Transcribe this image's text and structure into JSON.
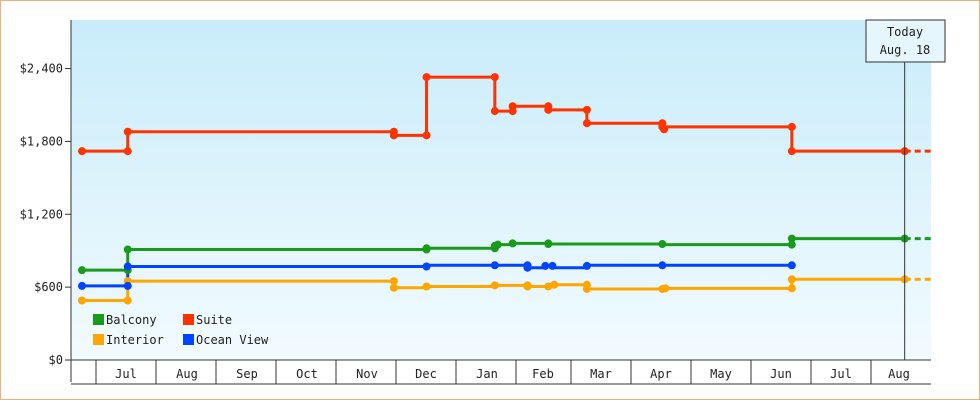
{
  "chart_data": {
    "type": "line",
    "ylim": [
      0,
      2800
    ],
    "y_ticks": [
      {
        "value": 0,
        "label": "$0"
      },
      {
        "value": 600,
        "label": "$600"
      },
      {
        "value": 1200,
        "label": "$1,200"
      },
      {
        "value": 1800,
        "label": "$1,800"
      },
      {
        "value": 2400,
        "label": "$2,400"
      }
    ],
    "x_domain": [
      0,
      14.3
    ],
    "x_ticks": [
      {
        "value": 1.0,
        "label": "Jul"
      },
      {
        "value": 2.0,
        "label": "Aug"
      },
      {
        "value": 3.0,
        "label": "Sep"
      },
      {
        "value": 4.0,
        "label": "Oct"
      },
      {
        "value": 5.0,
        "label": "Nov"
      },
      {
        "value": 6.0,
        "label": "Dec"
      },
      {
        "value": 7.0,
        "label": "Jan"
      },
      {
        "value": 8.0,
        "label": "Feb"
      },
      {
        "value": 9.0,
        "label": "Mar"
      },
      {
        "value": 10.0,
        "label": "Apr"
      },
      {
        "value": 11.0,
        "label": "May"
      },
      {
        "value": 12.0,
        "label": "Jun"
      },
      {
        "value": 13.0,
        "label": "Jul"
      },
      {
        "value": 14.0,
        "label": "Aug"
      }
    ],
    "today": {
      "line1": "Today",
      "line2": "Aug. 18",
      "x": 13.85
    },
    "series": [
      {
        "name": "Balcony",
        "color": "#1a9a1a",
        "points": [
          [
            0.0,
            740
          ],
          [
            0.77,
            740
          ],
          [
            0.77,
            910
          ],
          [
            5.8,
            910
          ],
          [
            5.8,
            920
          ],
          [
            6.95,
            920
          ],
          [
            6.95,
            940
          ],
          [
            7.0,
            950
          ],
          [
            7.25,
            950
          ],
          [
            7.25,
            960
          ],
          [
            7.85,
            960
          ],
          [
            7.85,
            955
          ],
          [
            9.77,
            955
          ],
          [
            9.77,
            950
          ],
          [
            11.95,
            950
          ],
          [
            11.95,
            1000
          ],
          [
            13.85,
            1000
          ]
        ],
        "projection": [
          [
            13.85,
            1000
          ],
          [
            14.3,
            1000
          ]
        ]
      },
      {
        "name": "Suite",
        "color": "#ff3300",
        "points": [
          [
            0.0,
            1720
          ],
          [
            0.77,
            1720
          ],
          [
            0.77,
            1880
          ],
          [
            5.25,
            1880
          ],
          [
            5.25,
            1850
          ],
          [
            5.8,
            1850
          ],
          [
            5.8,
            2330
          ],
          [
            6.95,
            2330
          ],
          [
            6.95,
            2050
          ],
          [
            7.25,
            2050
          ],
          [
            7.25,
            2090
          ],
          [
            7.85,
            2090
          ],
          [
            7.85,
            2060
          ],
          [
            8.5,
            2060
          ],
          [
            8.5,
            1950
          ],
          [
            9.77,
            1950
          ],
          [
            9.77,
            1920
          ],
          [
            11.95,
            1920
          ],
          [
            11.95,
            1720
          ],
          [
            13.85,
            1720
          ]
        ],
        "projection": [
          [
            13.85,
            1720
          ],
          [
            14.3,
            1720
          ]
        ]
      },
      {
        "name": "Interior",
        "color": "#ffa500",
        "points": [
          [
            0.0,
            490
          ],
          [
            0.77,
            490
          ],
          [
            0.77,
            650
          ],
          [
            5.25,
            650
          ],
          [
            5.25,
            595
          ],
          [
            5.8,
            595
          ],
          [
            5.8,
            605
          ],
          [
            6.95,
            605
          ],
          [
            6.95,
            615
          ],
          [
            7.5,
            615
          ],
          [
            7.5,
            605
          ],
          [
            7.85,
            605
          ],
          [
            7.85,
            620
          ],
          [
            8.5,
            620
          ],
          [
            8.5,
            585
          ],
          [
            9.77,
            585
          ],
          [
            9.77,
            590
          ],
          [
            11.95,
            590
          ],
          [
            11.95,
            665
          ],
          [
            13.85,
            665
          ]
        ],
        "projection": [
          [
            13.85,
            665
          ],
          [
            14.3,
            665
          ]
        ]
      },
      {
        "name": "Ocean View",
        "color": "#0044ff",
        "points": [
          [
            0.0,
            610
          ],
          [
            0.77,
            610
          ],
          [
            0.77,
            770
          ],
          [
            5.8,
            770
          ],
          [
            5.8,
            780
          ],
          [
            7.5,
            780
          ],
          [
            7.5,
            760
          ],
          [
            7.8,
            760
          ],
          [
            7.8,
            775
          ],
          [
            7.92,
            775
          ],
          [
            7.92,
            760
          ],
          [
            8.5,
            760
          ],
          [
            8.5,
            780
          ],
          [
            11.95,
            780
          ]
        ]
      }
    ],
    "markers": {
      "Balcony": [
        [
          0.0,
          740
        ],
        [
          0.77,
          740
        ],
        [
          0.77,
          910
        ],
        [
          5.8,
          910
        ],
        [
          5.8,
          920
        ],
        [
          6.95,
          920
        ],
        [
          6.95,
          940
        ],
        [
          7.0,
          950
        ],
        [
          7.25,
          960
        ],
        [
          7.85,
          960
        ],
        [
          7.85,
          955
        ],
        [
          9.77,
          955
        ],
        [
          11.95,
          950
        ],
        [
          11.95,
          1000
        ],
        [
          13.85,
          1000
        ]
      ],
      "Suite": [
        [
          0.0,
          1720
        ],
        [
          0.77,
          1720
        ],
        [
          0.77,
          1880
        ],
        [
          5.25,
          1880
        ],
        [
          5.25,
          1850
        ],
        [
          5.8,
          1850
        ],
        [
          5.8,
          2330
        ],
        [
          6.95,
          2330
        ],
        [
          6.95,
          2050
        ],
        [
          7.25,
          2050
        ],
        [
          7.25,
          2090
        ],
        [
          7.85,
          2090
        ],
        [
          7.85,
          2060
        ],
        [
          8.5,
          2060
        ],
        [
          8.5,
          1950
        ],
        [
          9.77,
          1950
        ],
        [
          9.77,
          1920
        ],
        [
          9.8,
          1900
        ],
        [
          11.95,
          1920
        ],
        [
          11.95,
          1720
        ],
        [
          13.85,
          1720
        ]
      ],
      "Interior": [
        [
          0.0,
          490
        ],
        [
          0.77,
          490
        ],
        [
          0.77,
          650
        ],
        [
          5.25,
          650
        ],
        [
          5.25,
          595
        ],
        [
          5.8,
          605
        ],
        [
          6.95,
          615
        ],
        [
          7.5,
          615
        ],
        [
          7.5,
          605
        ],
        [
          7.85,
          605
        ],
        [
          7.95,
          620
        ],
        [
          8.5,
          620
        ],
        [
          8.5,
          585
        ],
        [
          9.77,
          585
        ],
        [
          9.82,
          590
        ],
        [
          11.95,
          590
        ],
        [
          11.95,
          665
        ],
        [
          13.85,
          665
        ]
      ],
      "Ocean View": [
        [
          0.0,
          610
        ],
        [
          0.77,
          610
        ],
        [
          0.77,
          770
        ],
        [
          5.8,
          770
        ],
        [
          6.95,
          780
        ],
        [
          7.5,
          780
        ],
        [
          7.5,
          760
        ],
        [
          7.8,
          775
        ],
        [
          7.92,
          775
        ],
        [
          8.5,
          775
        ],
        [
          9.77,
          780
        ],
        [
          11.95,
          780
        ]
      ]
    },
    "legend": [
      {
        "label": "Balcony",
        "color": "#1a9a1a"
      },
      {
        "label": "Suite",
        "color": "#ff3300"
      },
      {
        "label": "Interior",
        "color": "#ffa500"
      },
      {
        "label": "Ocean View",
        "color": "#0044ff"
      }
    ],
    "legend_placement": "bottom-left",
    "grid": false
  }
}
